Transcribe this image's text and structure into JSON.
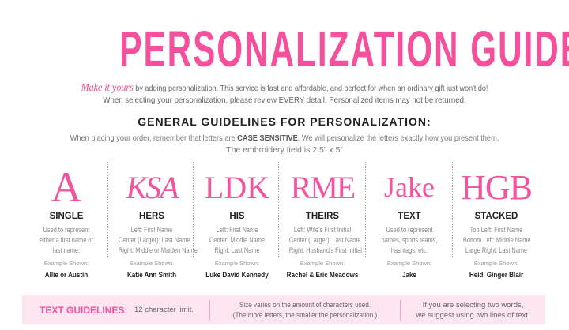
{
  "title": "PERSONALIZATION GUIDE",
  "intro": {
    "make": "Make it yours",
    "line1": " by adding personalization.  This service is fast and affordable, and perfect for when an ordinary gift just won't do!",
    "line2": "When selecting your personalization, please review EVERY detail. Personalized items may not be returned."
  },
  "guidelines": {
    "title": "GENERAL GUIDELINES FOR PERSONALIZATION:",
    "pre": "When placing your order, remember that letters are ",
    "bold": "CASE SENSITIVE",
    "post": ".  We will personalize the letters exactly how you present them.",
    "line2": "The embroidery field is 2.5” x 5”"
  },
  "example_label": "Example Shown:",
  "styles": [
    {
      "mono": "A",
      "name": "SINGLE",
      "desc": [
        "Used to represent",
        "either a first name or",
        "last name."
      ],
      "example": "Allie or Austin"
    },
    {
      "mono": "KSA",
      "name": "HERS",
      "desc": [
        "Left: First Name",
        "Center (Larger): Last Name",
        "Right: Middle or Maiden Name"
      ],
      "example": "Katie Ann Smith"
    },
    {
      "mono": "LDK",
      "name": "HIS",
      "desc": [
        "Left: First Name",
        "Center: Middle Name",
        "Right: Last Name"
      ],
      "example": "Luke David Kennedy"
    },
    {
      "mono": "RME",
      "name": "THEIRS",
      "desc": [
        "Left: Wife's First Initial",
        "Center (Larger): Last Name",
        "Right: Husband's First Initial"
      ],
      "example": "Rachel & Eric Meadows"
    },
    {
      "mono": "Jake",
      "name": "TEXT",
      "desc": [
        "Used to represent",
        "names, sports teams,",
        "hashtags, etc."
      ],
      "example": "Jake"
    },
    {
      "mono": "HGB",
      "name": "STACKED",
      "desc": [
        "Top Left: First Name",
        "Bottom Left: Middle Name",
        "Large Right: Last Name"
      ],
      "example": "Heidi Ginger Blair"
    }
  ],
  "text_guidelines": {
    "label": "TEXT GUIDELINES:",
    "limit": "12 character limit.",
    "size1": "Size varies on the amount of characters used.",
    "size2": "(The more letters, the smaller the personalization.)",
    "two1": "If you are selecting two words,",
    "two2": "we suggest using two lines of text."
  },
  "colors": {
    "accent": "#f6509d",
    "box": "#fde6f2"
  }
}
